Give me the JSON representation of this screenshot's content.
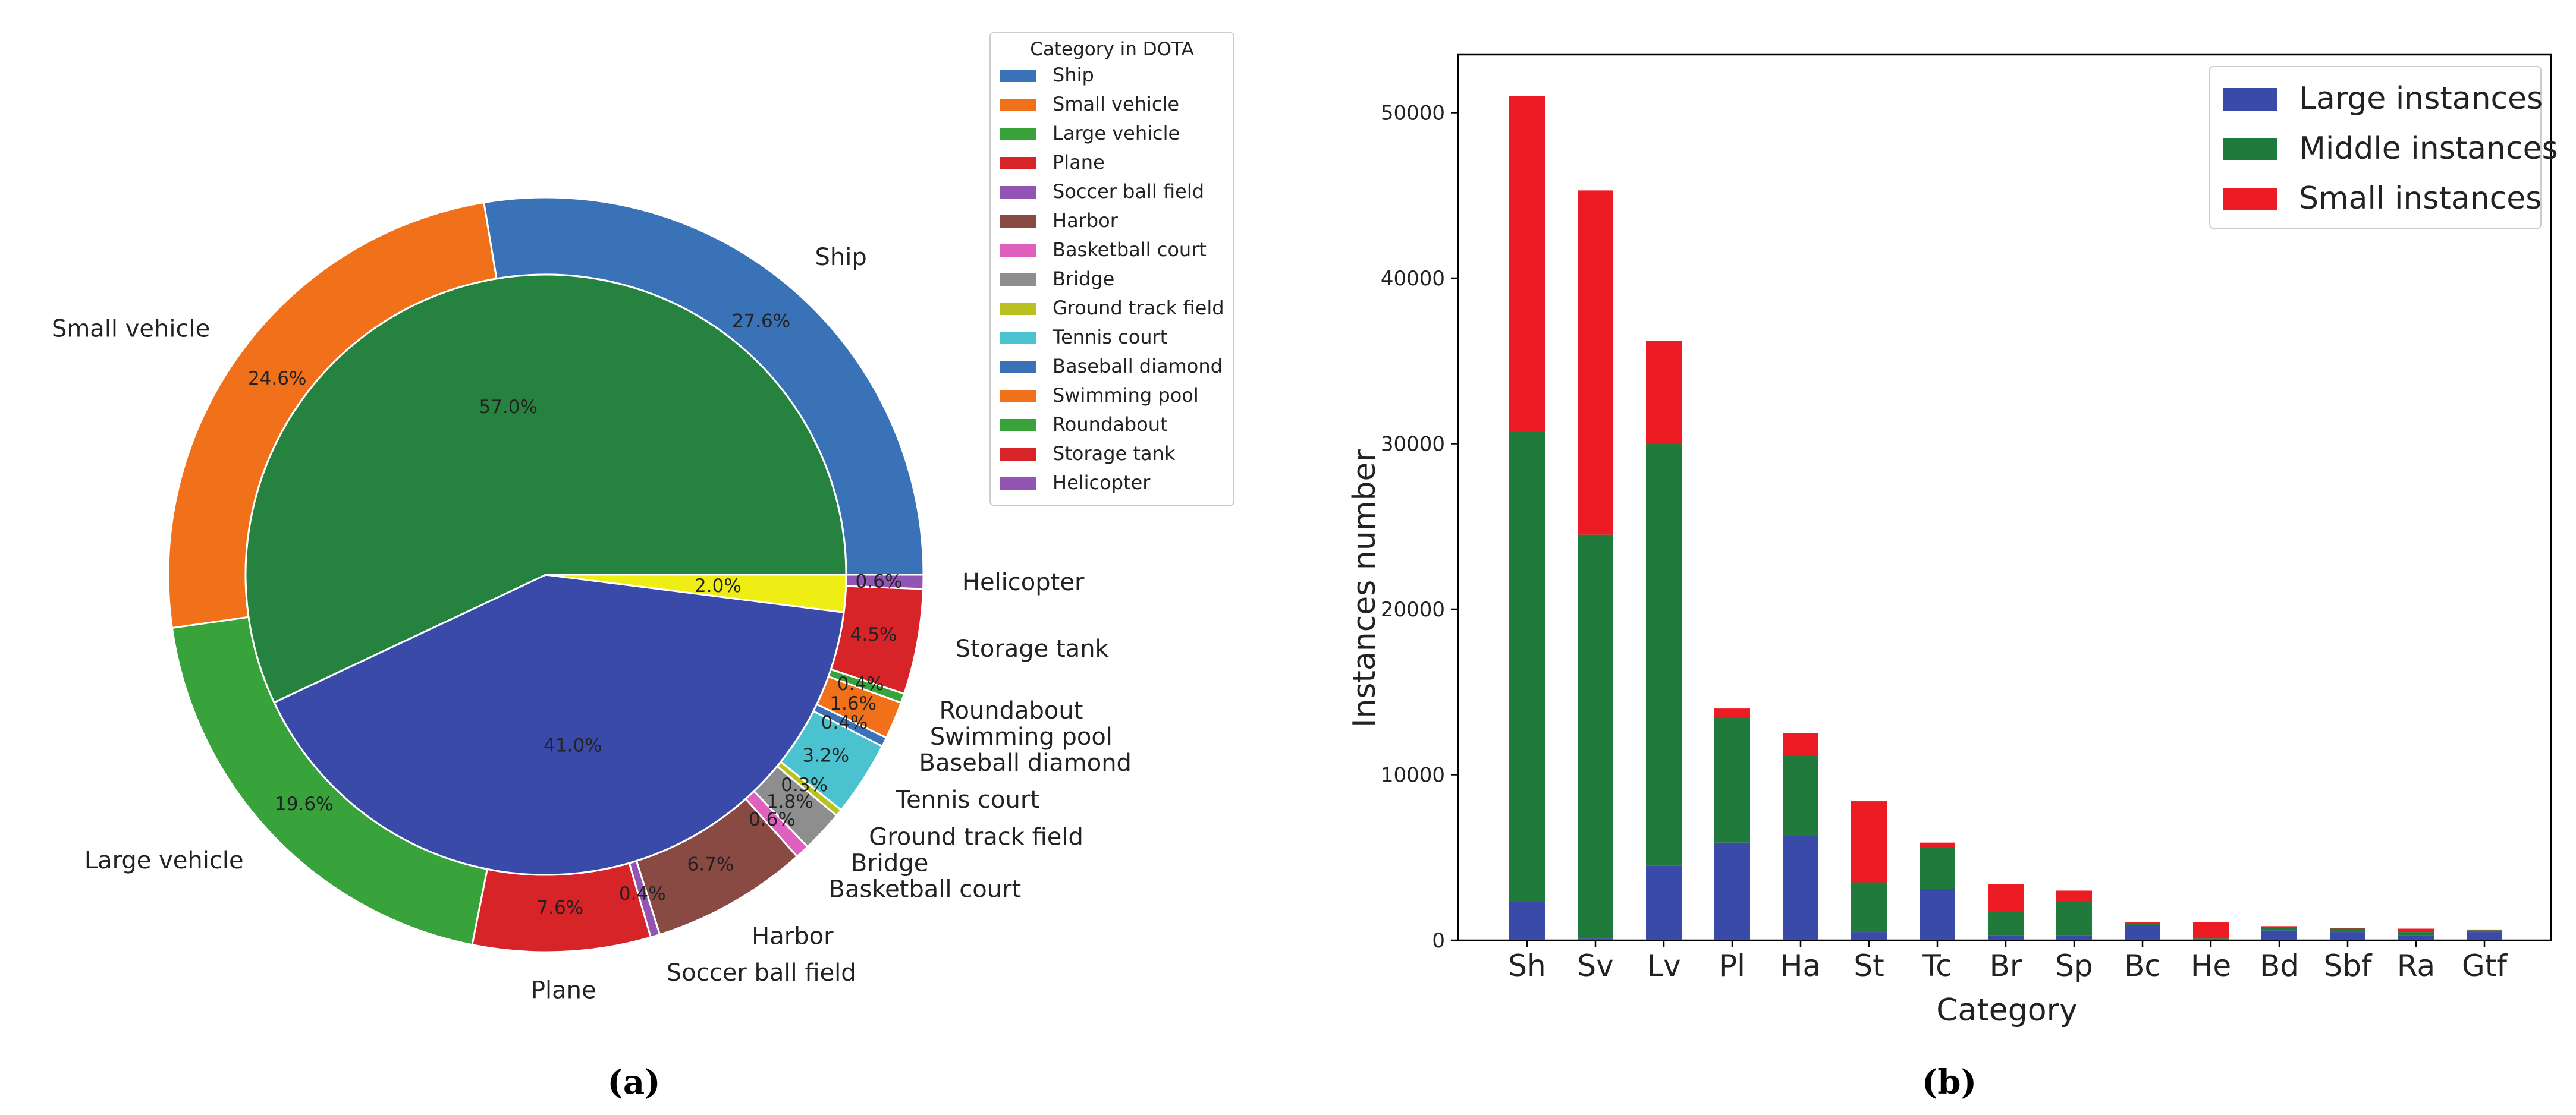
{
  "figure_labels": {
    "left": "(a)",
    "right": "(b)"
  },
  "chart_data": [
    {
      "type": "pie",
      "subtype": "nested-donut",
      "legend_title": "Category in DOTA",
      "legend_position": "top-right",
      "outer_ring": [
        {
          "name": "Ship",
          "value": 27.6,
          "label": "27.6%",
          "color": "#3a72b8"
        },
        {
          "name": "Small vehicle",
          "value": 24.6,
          "label": "24.6%",
          "color": "#f1711b"
        },
        {
          "name": "Large vehicle",
          "value": 19.6,
          "label": "19.6%",
          "color": "#38a23b"
        },
        {
          "name": "Plane",
          "value": 7.6,
          "label": "7.6%",
          "color": "#d62429"
        },
        {
          "name": "Soccer ball field",
          "value": 0.4,
          "label": "0.4%",
          "color": "#9255b3"
        },
        {
          "name": "Harbor",
          "value": 6.7,
          "label": "6.7%",
          "color": "#8a4a44"
        },
        {
          "name": "Basketball court",
          "value": 0.6,
          "label": "0.6%",
          "color": "#de61be"
        },
        {
          "name": "Bridge",
          "value": 1.8,
          "label": "1.8%",
          "color": "#8e8e8e"
        },
        {
          "name": "Ground track field",
          "value": 0.3,
          "label": "0.3%",
          "color": "#b9c121"
        },
        {
          "name": "Tennis court",
          "value": 3.2,
          "label": "3.2%",
          "color": "#4bc2cf"
        },
        {
          "name": "Baseball diamond",
          "value": 0.4,
          "label": "0.4%",
          "color": "#3a72b8"
        },
        {
          "name": "Swimming pool",
          "value": 1.6,
          "label": "1.6%",
          "color": "#f1711b"
        },
        {
          "name": "Roundabout",
          "value": 0.4,
          "label": "0.4%",
          "color": "#38a23b"
        },
        {
          "name": "Storage tank",
          "value": 4.5,
          "label": "4.5%",
          "color": "#d62429"
        },
        {
          "name": "Helicopter",
          "value": 0.6,
          "label": "0.6%",
          "color": "#9255b3"
        }
      ],
      "inner_ring": [
        {
          "name": "Middle instances",
          "value": 57.0,
          "label": "57.0%",
          "color": "#25833f"
        },
        {
          "name": "Large instances",
          "value": 41.0,
          "label": "41.0%",
          "color": "#3a4aa8"
        },
        {
          "name": "Small instances",
          "value": 2.0,
          "label": "2.0%",
          "color": "#eeee14"
        }
      ]
    },
    {
      "type": "bar",
      "subtype": "stacked",
      "xlabel": "Category",
      "ylabel": "Instances number",
      "ylim": [
        0,
        53500
      ],
      "yticks": [
        0,
        10000,
        20000,
        30000,
        40000,
        50000
      ],
      "legend_position": "top-right",
      "categories": [
        "Sh",
        "Sv",
        "Lv",
        "Pl",
        "Ha",
        "St",
        "Tc",
        "Br",
        "Sp",
        "Bc",
        "He",
        "Bd",
        "Sbf",
        "Ra",
        "Gtf"
      ],
      "series": [
        {
          "name": "Large instances",
          "color": "#3a4aa8",
          "values": [
            2300,
            100,
            4500,
            5900,
            6300,
            500,
            3100,
            300,
            300,
            900,
            0,
            600,
            500,
            300,
            500
          ]
        },
        {
          "name": "Middle instances",
          "color": "#1f7a3c",
          "values": [
            28400,
            24400,
            25500,
            7600,
            4900,
            3000,
            2500,
            1400,
            2000,
            100,
            100,
            200,
            200,
            200,
            100
          ]
        },
        {
          "name": "Small instances",
          "color": "#ed1c24",
          "values": [
            20300,
            20800,
            6200,
            500,
            1300,
            4900,
            300,
            1700,
            700,
            100,
            1000,
            50,
            50,
            200,
            50
          ]
        }
      ]
    }
  ]
}
